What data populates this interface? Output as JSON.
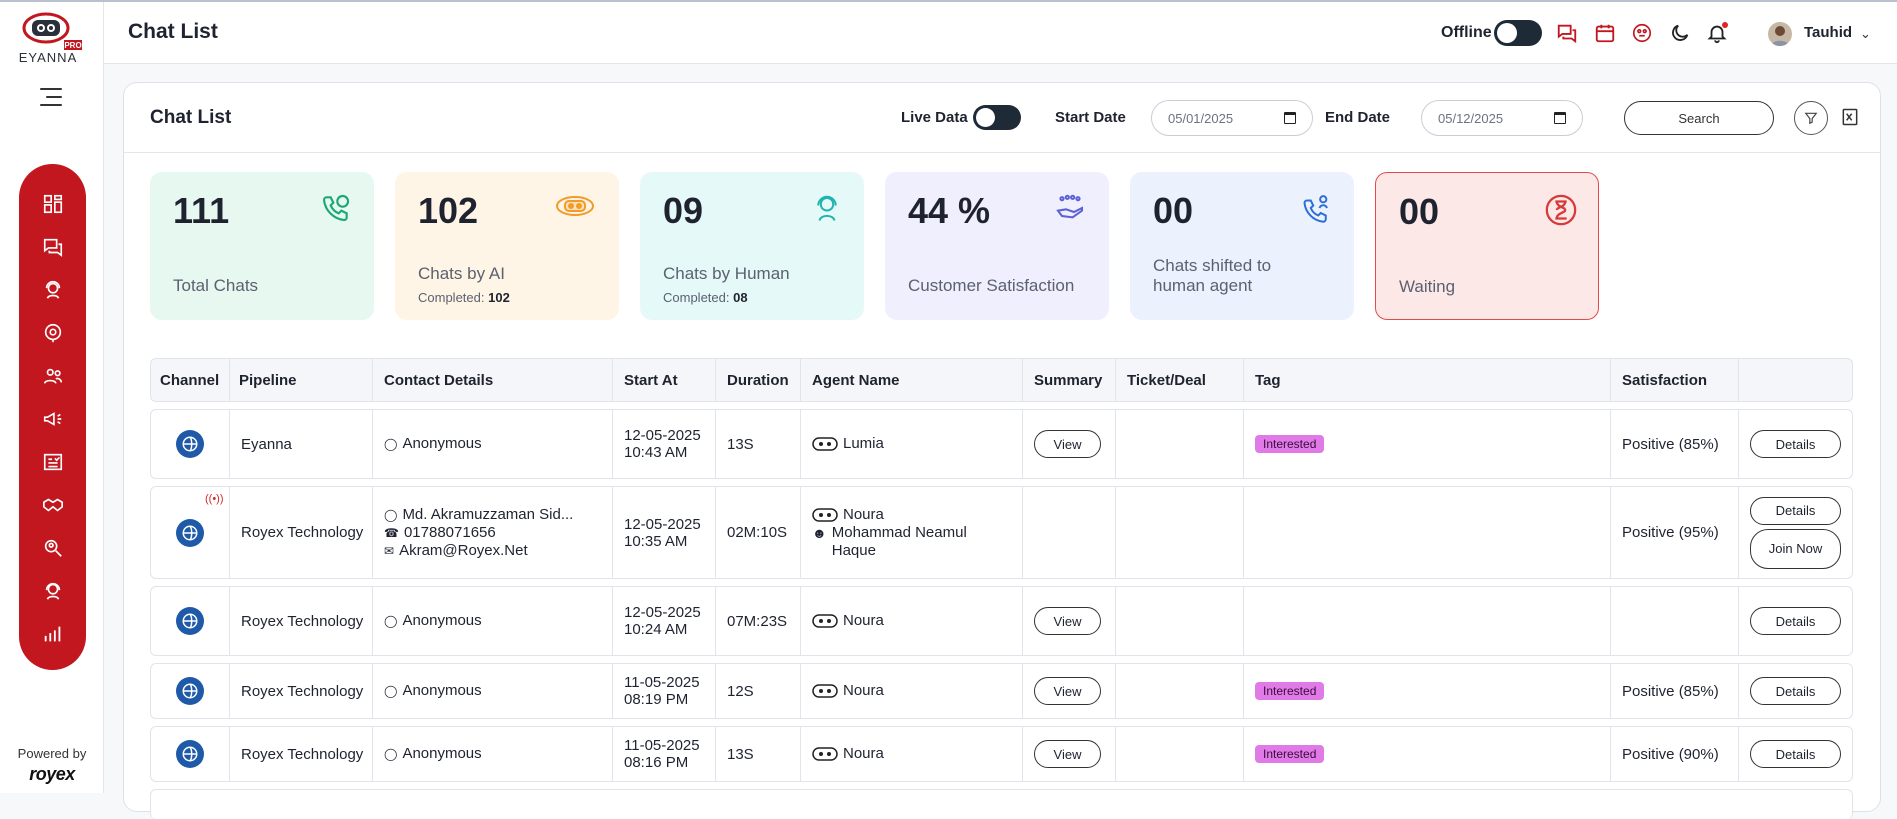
{
  "brand": {
    "logo_text": "EYANNA",
    "logo_badge": "PRO",
    "powered_by": "Powered by",
    "powered_company": "royex"
  },
  "colors": {
    "brand_red": "#c2171f",
    "tag_bg": "#e07ae6"
  },
  "sidebar": {
    "items": [
      {
        "name": "dashboard-icon"
      },
      {
        "name": "chat-icon"
      },
      {
        "name": "agent-icon"
      },
      {
        "name": "ai-brain-icon"
      },
      {
        "name": "users-icon"
      },
      {
        "name": "megaphone-icon"
      },
      {
        "name": "report-card-icon"
      },
      {
        "name": "handshake-icon"
      },
      {
        "name": "search-user-icon"
      },
      {
        "name": "support-icon"
      },
      {
        "name": "bar-chart-icon"
      }
    ]
  },
  "header": {
    "title": "Chat List",
    "status_label": "Offline",
    "user_name": "Tauhid",
    "icons": [
      "chat-icon",
      "calendar-icon",
      "robot-face-icon",
      "moon-icon",
      "bell-icon"
    ]
  },
  "card": {
    "title": "Chat List",
    "live_data_label": "Live Data",
    "start_date_label": "Start Date",
    "start_date_value": "05/01/2025",
    "end_date_label": "End Date",
    "end_date_value": "05/12/2025",
    "search_label": "Search"
  },
  "stats": [
    {
      "value": "111",
      "label": "Total Chats",
      "icon": "phone-chat-icon"
    },
    {
      "value": "102",
      "label": "Chats by AI",
      "completed_label": "Completed:",
      "completed_value": "102",
      "icon": "robot-icon"
    },
    {
      "value": "09",
      "label": "Chats by Human",
      "completed_label": "Completed:",
      "completed_value": "08",
      "icon": "human-agent-icon"
    },
    {
      "value": "44 %",
      "label": "Customer Satisfaction",
      "icon": "hand-stars-icon"
    },
    {
      "value": "00",
      "label": "Chats shifted to human agent",
      "icon": "phone-transfer-icon"
    },
    {
      "value": "00",
      "label": "Waiting",
      "icon": "hourglass-icon"
    }
  ],
  "table": {
    "columns": [
      "Channel",
      "Pipeline",
      "Contact Details",
      "Start At",
      "Duration",
      "Agent Name",
      "Summary",
      "Ticket/Deal",
      "Tag",
      "Satisfaction",
      ""
    ],
    "rows": [
      {
        "pipeline": "Eyanna",
        "contact": "Anonymous",
        "date": "12-05-2025",
        "time": "10:43 AM",
        "duration": "13S",
        "agent": "Lumia",
        "summary": "View",
        "tag": "Interested",
        "satisfaction": "Positive (85%)",
        "action": "Details"
      },
      {
        "pipeline": "Royex Technology",
        "contact": "Md. Akramuzzaman Sid...",
        "phone": "01788071656",
        "email": "Akram@Royex.Net",
        "date": "12-05-2025",
        "time": "10:35 AM",
        "duration": "02M:10S",
        "agent": "Noura",
        "agent2": "Mohammad Neamul Haque",
        "satisfaction": "Positive (95%)",
        "action": "Details",
        "action2": "Join Now"
      },
      {
        "pipeline": "Royex Technology",
        "contact": "Anonymous",
        "date": "12-05-2025",
        "time": "10:24 AM",
        "duration": "07M:23S",
        "agent": "Noura",
        "summary": "View",
        "action": "Details"
      },
      {
        "pipeline": "Royex Technology",
        "contact": "Anonymous",
        "date": "11-05-2025",
        "time": "08:19 PM",
        "duration": "12S",
        "agent": "Noura",
        "summary": "View",
        "tag": "Interested",
        "satisfaction": "Positive (85%)",
        "action": "Details"
      },
      {
        "pipeline": "Royex Technology",
        "contact": "Anonymous",
        "date": "11-05-2025",
        "time": "08:16 PM",
        "duration": "13S",
        "agent": "Noura",
        "summary": "View",
        "tag": "Interested",
        "satisfaction": "Positive (90%)",
        "action": "Details"
      }
    ]
  }
}
